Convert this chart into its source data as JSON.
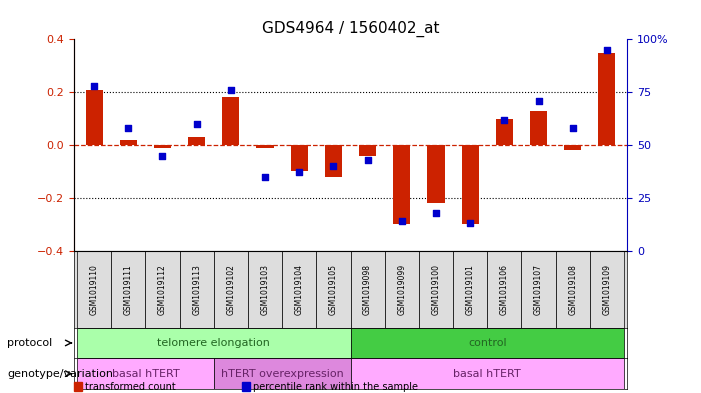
{
  "title": "GDS4964 / 1560402_at",
  "samples": [
    "GSM1019110",
    "GSM1019111",
    "GSM1019112",
    "GSM1019113",
    "GSM1019102",
    "GSM1019103",
    "GSM1019104",
    "GSM1019105",
    "GSM1019098",
    "GSM1019099",
    "GSM1019100",
    "GSM1019101",
    "GSM1019106",
    "GSM1019107",
    "GSM1019108",
    "GSM1019109"
  ],
  "bar_values": [
    0.21,
    0.02,
    -0.01,
    0.03,
    0.18,
    -0.01,
    -0.1,
    -0.12,
    -0.04,
    -0.3,
    -0.22,
    -0.3,
    0.1,
    0.13,
    -0.02,
    0.35
  ],
  "dot_values_pct": [
    78,
    58,
    45,
    60,
    76,
    35,
    37,
    40,
    43,
    14,
    18,
    13,
    62,
    71,
    58,
    95
  ],
  "ylim_left": [
    -0.4,
    0.4
  ],
  "ylim_right": [
    0,
    100
  ],
  "yticks_left": [
    -0.4,
    -0.2,
    0.0,
    0.2,
    0.4
  ],
  "yticks_right": [
    0,
    25,
    50,
    75,
    100
  ],
  "bar_color": "#cc2200",
  "dot_color": "#0000cc",
  "dotted_line_values": [
    -0.2,
    0.2
  ],
  "zero_line_color": "#cc2200",
  "protocol_groups": [
    {
      "label": "telomere elongation",
      "start": 0,
      "end": 7,
      "color": "#aaffaa"
    },
    {
      "label": "control",
      "start": 8,
      "end": 15,
      "color": "#44cc44"
    }
  ],
  "genotype_groups": [
    {
      "label": "basal hTERT",
      "start": 0,
      "end": 3,
      "color": "#ffaaff"
    },
    {
      "label": "hTERT overexpression",
      "start": 4,
      "end": 7,
      "color": "#dd88dd"
    },
    {
      "label": "basal hTERT",
      "start": 8,
      "end": 15,
      "color": "#ffaaff"
    }
  ],
  "legend_items": [
    {
      "color": "#cc2200",
      "label": "transformed count"
    },
    {
      "color": "#0000cc",
      "label": "percentile rank within the sample"
    }
  ],
  "row_label_protocol": "protocol",
  "row_label_genotype": "genotype/variation",
  "background_color": "#ffffff",
  "xlabel_color": "#000000",
  "ylabel_left_color": "#cc2200",
  "ylabel_right_color": "#0000bb"
}
